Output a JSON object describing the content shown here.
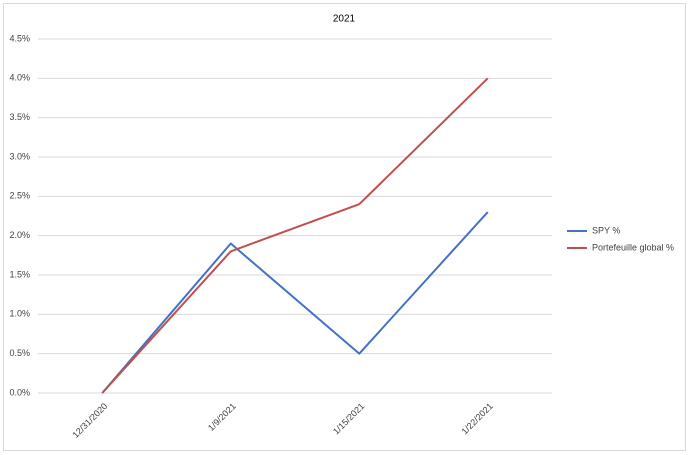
{
  "chart_data": {
    "type": "line",
    "title": "2021",
    "categories": [
      "12/31/2020",
      "1/9/2021",
      "1/15/2021",
      "1/22/2021"
    ],
    "series": [
      {
        "name": "SPY %",
        "color": "#4472c4",
        "values": [
          0,
          1.9,
          0.5,
          2.3
        ]
      },
      {
        "name": "Portefeuille global %",
        "color": "#c0504d",
        "values": [
          0,
          1.8,
          2.4,
          4.0
        ]
      }
    ],
    "ylim": [
      0,
      4.5
    ],
    "yticks": [
      {
        "value": 0,
        "label": "0.0%"
      },
      {
        "value": 0.5,
        "label": "0.5%"
      },
      {
        "value": 1,
        "label": "1.0%"
      },
      {
        "value": 1.5,
        "label": "1.5%"
      },
      {
        "value": 2,
        "label": "2.0%"
      },
      {
        "value": 2.5,
        "label": "2.5%"
      },
      {
        "value": 3,
        "label": "3.0%"
      },
      {
        "value": 3.5,
        "label": "3.5%"
      },
      {
        "value": 4,
        "label": "4.0%"
      },
      {
        "value": 4.5,
        "label": "4.5%"
      }
    ],
    "grid": true,
    "legend": "right"
  }
}
